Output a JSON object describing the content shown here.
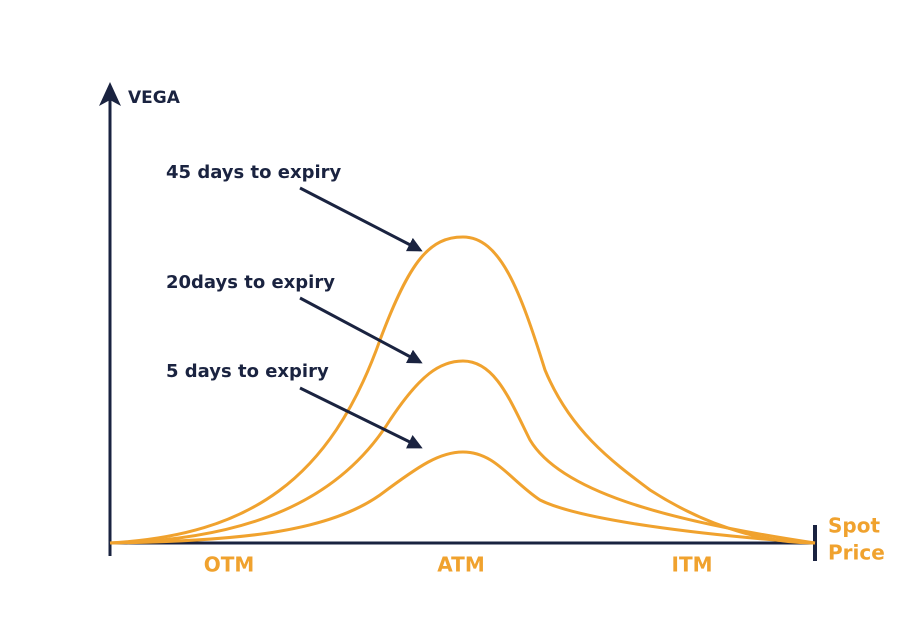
{
  "y_axis": {
    "label": "VEGA"
  },
  "x_axis": {
    "label_lines": [
      "Spot",
      "Price"
    ],
    "regions": [
      "OTM",
      "ATM",
      "ITM"
    ]
  },
  "annotations": [
    "45 days to expiry",
    "20days to expiry",
    "5 days to expiry"
  ]
}
